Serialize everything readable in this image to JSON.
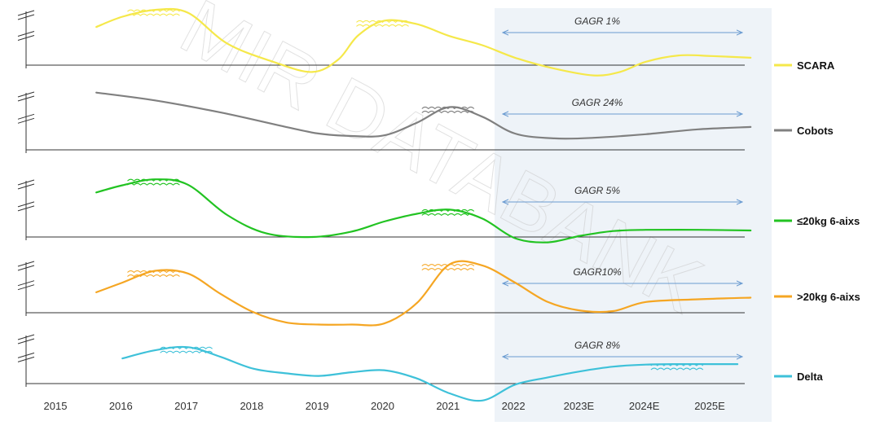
{
  "chart_data": {
    "type": "line",
    "x": [
      "2015",
      "2016",
      "2017",
      "2018",
      "2019",
      "2020",
      "2021",
      "2022",
      "2023E",
      "2024E",
      "2025E"
    ],
    "forecast_shaded_from": "2022",
    "watermark": "MIR DATABANK",
    "series": [
      {
        "name": "SCARA",
        "color": "#f5e84a",
        "cagr_label": "GAGR 1%",
        "x": [
          2015.6,
          2016.0,
          2016.5,
          2017.0,
          2017.6,
          2018.3,
          2018.9,
          2019.3,
          2019.6,
          2020.0,
          2020.5,
          2021.0,
          2021.5,
          2022.0,
          2022.6,
          2023.2,
          2023.6,
          2024.0,
          2024.5,
          2025.0,
          2025.6
        ],
        "y": [
          0.67,
          0.85,
          0.97,
          0.92,
          0.38,
          0.06,
          -0.12,
          0.1,
          0.52,
          0.78,
          0.72,
          0.51,
          0.35,
          0.13,
          -0.06,
          -0.18,
          -0.12,
          0.06,
          0.17,
          0.16,
          0.13
        ]
      },
      {
        "name": "Cobots",
        "color": "#808080",
        "cagr_label": "GAGR 24%",
        "x": [
          2015.6,
          2016.5,
          2017.5,
          2018.5,
          2019.0,
          2019.5,
          2020.0,
          2020.5,
          2021.0,
          2021.5,
          2022.0,
          2022.6,
          2023.2,
          2024.0,
          2024.8,
          2025.6
        ],
        "y": [
          0.95,
          0.82,
          0.62,
          0.38,
          0.27,
          0.23,
          0.24,
          0.45,
          0.71,
          0.55,
          0.27,
          0.19,
          0.2,
          0.26,
          0.34,
          0.38
        ]
      },
      {
        "name": "≤20kg 6-aixs",
        "color": "#22c322",
        "cagr_label": "GAGR 5%",
        "x": [
          2015.6,
          2016.0,
          2016.5,
          2017.0,
          2017.6,
          2018.2,
          2018.9,
          2019.5,
          2020.0,
          2020.5,
          2021.0,
          2021.5,
          2022.0,
          2022.5,
          2023.0,
          2023.5,
          2024.0,
          2024.8,
          2025.6
        ],
        "y": [
          0.75,
          0.87,
          0.97,
          0.88,
          0.37,
          0.06,
          0.0,
          0.09,
          0.26,
          0.39,
          0.46,
          0.31,
          -0.02,
          -0.09,
          0.02,
          0.1,
          0.12,
          0.12,
          0.11
        ]
      },
      {
        "name": ">20kg 6-aixs",
        "color": "#f5a623",
        "cagr_label": "GAGR10%",
        "x": [
          2015.6,
          2016.0,
          2016.5,
          2017.0,
          2017.5,
          2018.0,
          2018.5,
          2019.0,
          2019.5,
          2020.0,
          2020.5,
          2021.0,
          2021.5,
          2022.0,
          2022.5,
          2023.0,
          2023.5,
          2024.0,
          2024.8,
          2025.6
        ],
        "y": [
          0.38,
          0.56,
          0.78,
          0.73,
          0.35,
          0.01,
          -0.18,
          -0.22,
          -0.22,
          -0.2,
          0.18,
          0.9,
          0.88,
          0.56,
          0.2,
          0.04,
          0.03,
          0.2,
          0.25,
          0.28
        ]
      },
      {
        "name": "Delta",
        "color": "#3ec1d9",
        "cagr_label": "GAGR 8%",
        "x": [
          2016.0,
          2016.5,
          2017.0,
          2017.5,
          2018.0,
          2018.5,
          2019.0,
          2019.5,
          2020.0,
          2020.5,
          2021.0,
          2021.5,
          2022.0,
          2022.5,
          2023.0,
          2023.5,
          2024.0,
          2024.5,
          2025.0,
          2025.4
        ],
        "y": [
          0.49,
          0.65,
          0.71,
          0.52,
          0.29,
          0.2,
          0.15,
          0.22,
          0.26,
          0.1,
          -0.19,
          -0.33,
          -0.02,
          0.12,
          0.24,
          0.33,
          0.37,
          0.38,
          0.38,
          0.38
        ]
      }
    ]
  }
}
